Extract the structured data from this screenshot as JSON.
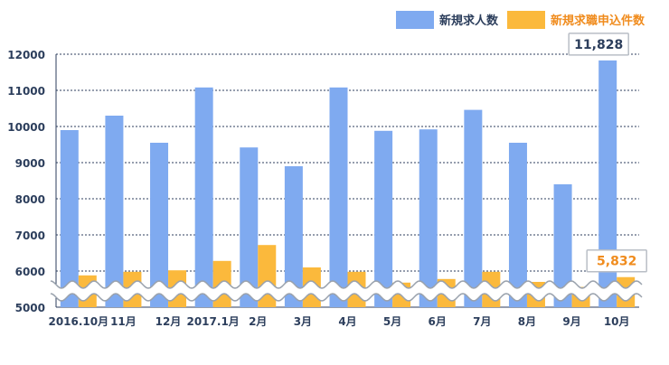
{
  "chart_data": {
    "type": "bar",
    "categories": [
      "2016.10月",
      "11月",
      "12月",
      "2017.1月",
      "2月",
      "3月",
      "4月",
      "5月",
      "6月",
      "7月",
      "8月",
      "9月",
      "10月"
    ],
    "series": [
      {
        "name": "新規求人数",
        "color": "#7faaf0",
        "values": [
          9900,
          10300,
          9550,
          11080,
          9420,
          8900,
          11080,
          9880,
          9920,
          10460,
          9550,
          8400,
          11828
        ]
      },
      {
        "name": "新規求職申込件数",
        "color": "#fbb93c",
        "values": [
          5880,
          5980,
          6020,
          6280,
          6720,
          6100,
          5980,
          5680,
          5780,
          5980,
          5700,
          5560,
          5832
        ]
      }
    ],
    "ylim": [
      5000,
      12000
    ],
    "yticks": [
      "5000",
      "6000",
      "7000",
      "8000",
      "9000",
      "10000",
      "11000",
      "12000"
    ],
    "grid": true,
    "legend_position": "top-right",
    "axis_break": true,
    "callouts": [
      {
        "series": 0,
        "index": 12,
        "label": "11,828",
        "color": "#2c3e5c"
      },
      {
        "series": 1,
        "index": 12,
        "label": "5,832",
        "color": "#f08c1e"
      }
    ]
  }
}
